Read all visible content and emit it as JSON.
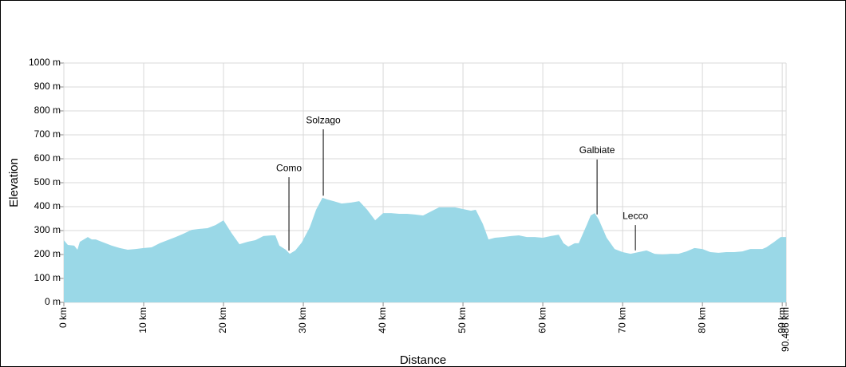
{
  "chart_data": {
    "type": "area",
    "x_label": "Distance",
    "y_label": "Elevation",
    "color": "#9ad8e7",
    "grid": true,
    "xlim": [
      0,
      90.486
    ],
    "ylim": [
      0,
      1000
    ],
    "xticks": [
      {
        "value": 0,
        "label": "0 km"
      },
      {
        "value": 10,
        "label": "10 km"
      },
      {
        "value": 20,
        "label": "20 km"
      },
      {
        "value": 30,
        "label": "30 km"
      },
      {
        "value": 40,
        "label": "40 km"
      },
      {
        "value": 50,
        "label": "50 km"
      },
      {
        "value": 60,
        "label": "60 km"
      },
      {
        "value": 70,
        "label": "70 km"
      },
      {
        "value": 80,
        "label": "80 km"
      },
      {
        "value": 90,
        "label": "90 km"
      },
      {
        "value": 90.486,
        "label": "90.486 km"
      }
    ],
    "yticks": [
      {
        "value": 0,
        "label": "0 m"
      },
      {
        "value": 100,
        "label": "100 m"
      },
      {
        "value": 200,
        "label": "200 m"
      },
      {
        "value": 300,
        "label": "300 m"
      },
      {
        "value": 400,
        "label": "400 m"
      },
      {
        "value": 500,
        "label": "500 m"
      },
      {
        "value": 600,
        "label": "600 m"
      },
      {
        "value": 700,
        "label": "700 m"
      },
      {
        "value": 800,
        "label": "800 m"
      },
      {
        "value": 900,
        "label": "900 m"
      },
      {
        "value": 1000,
        "label": "1000 m"
      }
    ],
    "x": [
      0,
      0.5,
      1.3,
      1.7,
      2,
      3,
      3.5,
      4,
      5,
      6,
      7,
      8,
      9,
      10,
      11,
      12,
      13,
      14,
      15,
      16,
      17,
      18,
      19,
      20,
      21,
      22,
      23,
      24,
      25,
      26,
      26.5,
      27,
      27.8,
      28.3,
      29,
      29.8,
      30.8,
      31.6,
      32.4,
      33,
      33.8,
      34.8,
      36,
      37,
      38,
      39,
      40,
      41,
      42,
      43,
      44,
      45,
      46,
      47,
      48,
      49,
      50,
      51,
      51.6,
      52.5,
      53.2,
      54,
      55,
      56,
      57,
      58,
      59,
      60,
      61,
      62,
      62.6,
      63.2,
      64,
      64.5,
      65.5,
      66,
      66.5,
      67,
      68,
      69,
      70,
      71,
      72,
      73,
      74,
      75,
      76,
      77,
      78,
      79,
      80,
      81,
      82,
      83,
      84,
      85,
      86,
      87,
      87.5,
      88,
      89,
      89.8,
      90.486
    ],
    "y": [
      260,
      240,
      237,
      220,
      253,
      273,
      263,
      263,
      250,
      237,
      227,
      220,
      223,
      227,
      230,
      247,
      260,
      273,
      287,
      303,
      307,
      310,
      323,
      343,
      290,
      243,
      253,
      260,
      277,
      280,
      280,
      237,
      220,
      203,
      217,
      250,
      313,
      387,
      437,
      430,
      423,
      413,
      417,
      423,
      387,
      343,
      373,
      373,
      370,
      370,
      367,
      363,
      380,
      397,
      397,
      397,
      390,
      383,
      387,
      327,
      263,
      270,
      273,
      277,
      280,
      273,
      273,
      270,
      277,
      283,
      247,
      233,
      247,
      247,
      323,
      363,
      373,
      347,
      270,
      223,
      210,
      203,
      210,
      217,
      203,
      200,
      203,
      203,
      213,
      227,
      223,
      210,
      207,
      210,
      210,
      213,
      223,
      223,
      223,
      230,
      253,
      273,
      273
    ],
    "annotations": [
      {
        "text": "Como",
        "x": 28.2,
        "y": 523
      },
      {
        "text": "Solzago",
        "x": 32.5,
        "y": 723
      },
      {
        "text": "Galbiate",
        "x": 66.8,
        "y": 597
      },
      {
        "text": "Lecco",
        "x": 71.6,
        "y": 323
      }
    ]
  }
}
